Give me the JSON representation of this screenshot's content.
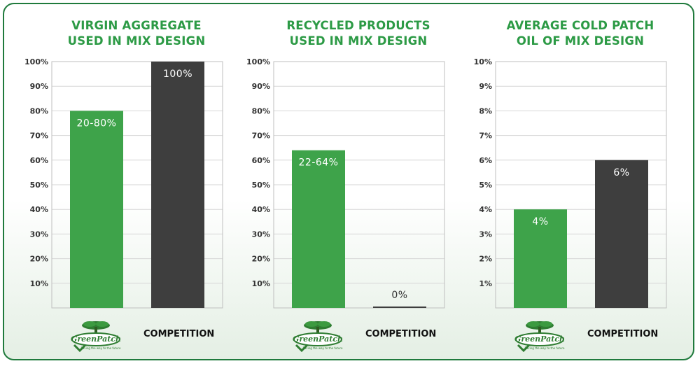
{
  "colors": {
    "green": "#3ea34a",
    "dark": "#3e3e3e",
    "title": "#2c9a45",
    "grid": "#d6d6d6",
    "frame": "#1f7a3c"
  },
  "logo": {
    "name": "GreenPatch",
    "tagline": "Paving the way to the future"
  },
  "chart_data": [
    {
      "type": "bar",
      "title_lines": [
        "VIRGIN AGGREGATE",
        "USED IN MIX DESIGN"
      ],
      "categories": [
        "GreenPatch",
        "COMPETITION"
      ],
      "values": [
        80,
        100
      ],
      "value_labels": [
        "20-80%",
        "100%"
      ],
      "colors": [
        "#3ea34a",
        "#3e3e3e"
      ],
      "ylim": [
        0,
        100
      ],
      "yticks": [
        "10%",
        "20%",
        "30%",
        "40%",
        "50%",
        "60%",
        "70%",
        "80%",
        "90%",
        "100%"
      ],
      "ytick_values": [
        10,
        20,
        30,
        40,
        50,
        60,
        70,
        80,
        90,
        100
      ],
      "grid": true
    },
    {
      "type": "bar",
      "title_lines": [
        "RECYCLED PRODUCTS",
        "USED IN MIX DESIGN"
      ],
      "categories": [
        "GreenPatch",
        "COMPETITION"
      ],
      "values": [
        64,
        0
      ],
      "value_labels": [
        "22-64%",
        "0%"
      ],
      "colors": [
        "#3ea34a",
        "#3e3e3e"
      ],
      "ylim": [
        0,
        100
      ],
      "yticks": [
        "10%",
        "20%",
        "30%",
        "40%",
        "50%",
        "60%",
        "70%",
        "80%",
        "90%",
        "100%"
      ],
      "ytick_values": [
        10,
        20,
        30,
        40,
        50,
        60,
        70,
        80,
        90,
        100
      ],
      "grid": true
    },
    {
      "type": "bar",
      "title_lines": [
        "AVERAGE COLD PATCH",
        "OIL OF MIX DESIGN"
      ],
      "categories": [
        "GreenPatch",
        "COMPETITION"
      ],
      "values": [
        4,
        6
      ],
      "value_labels": [
        "4%",
        "6%"
      ],
      "colors": [
        "#3ea34a",
        "#3e3e3e"
      ],
      "ylim": [
        0,
        10
      ],
      "yticks": [
        "1%",
        "2%",
        "3%",
        "4%",
        "5%",
        "6%",
        "7%",
        "8%",
        "9%",
        "10%"
      ],
      "ytick_values": [
        1,
        2,
        3,
        4,
        5,
        6,
        7,
        8,
        9,
        10
      ],
      "grid": true
    }
  ]
}
